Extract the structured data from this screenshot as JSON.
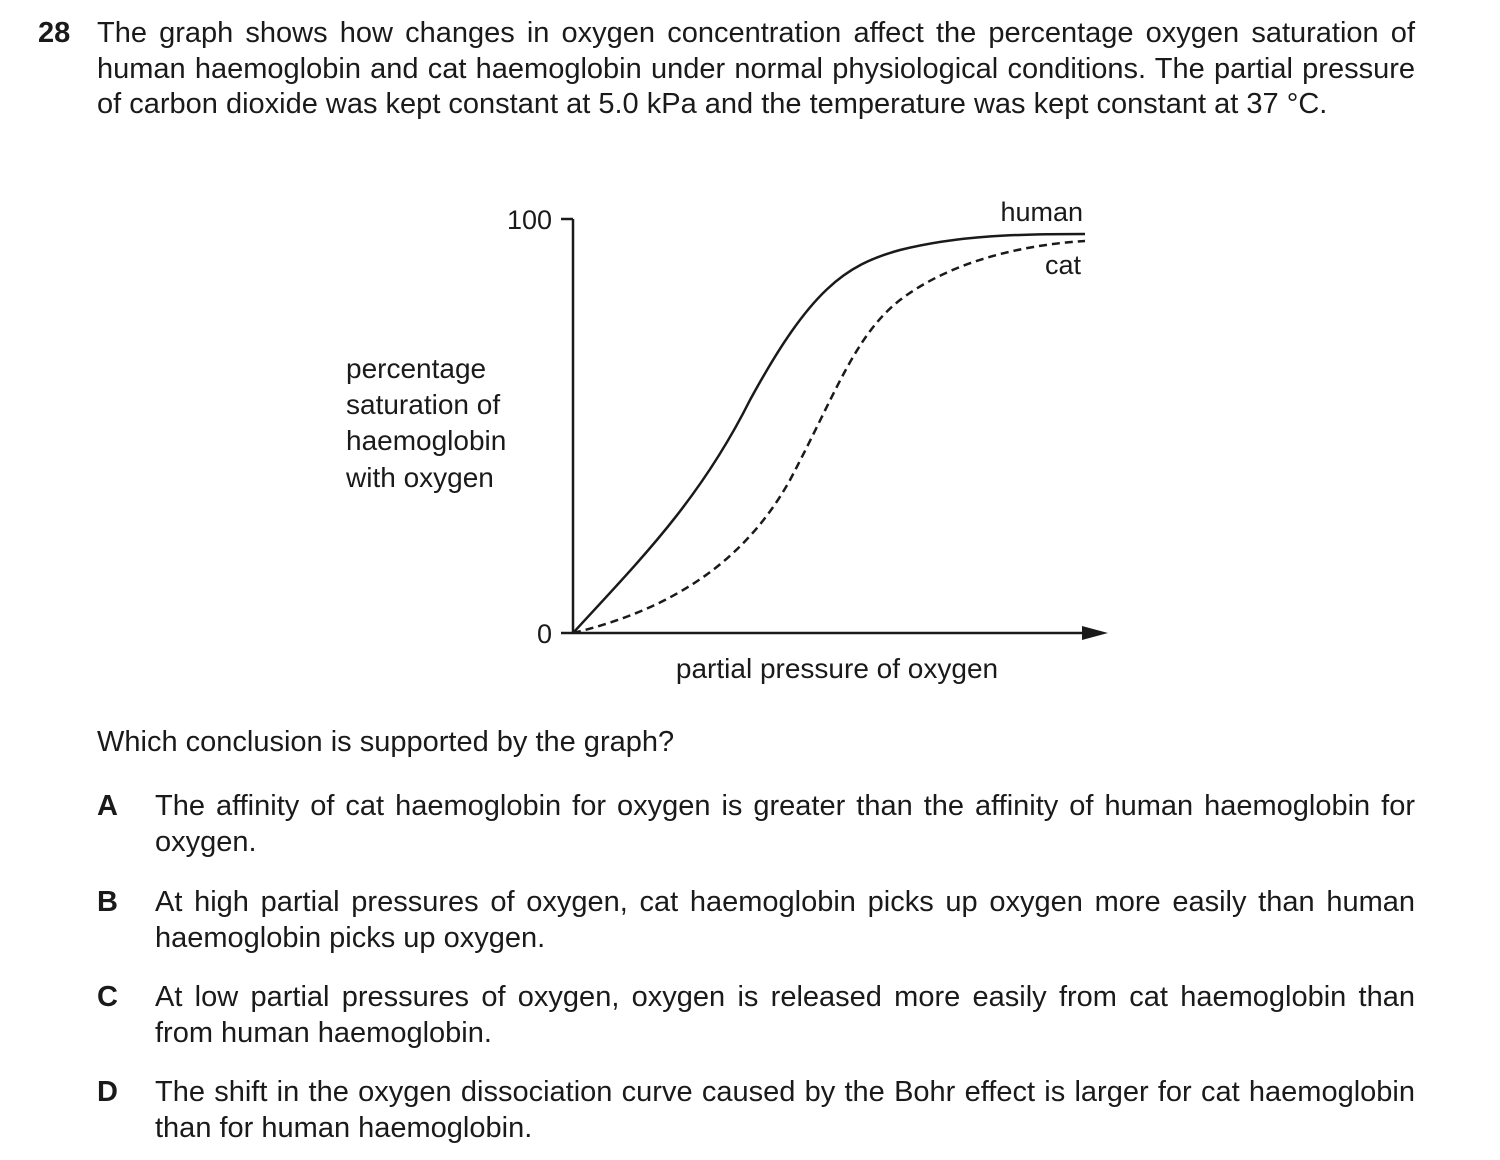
{
  "question": {
    "number": "28",
    "stem": "The graph shows how changes in oxygen concentration affect the percentage oxygen saturation of human haemoglobin and cat haemoglobin under normal physiological conditions. The partial pressure of carbon dioxide was kept constant at 5.0 kPa and the temperature was kept constant at 37 °C.",
    "prompt": "Which conclusion is supported by the graph?",
    "options": [
      {
        "letter": "A",
        "text": "The affinity of cat haemoglobin for oxygen is greater than the affinity of human haemoglobin for oxygen."
      },
      {
        "letter": "B",
        "text": "At high partial pressures of oxygen, cat haemoglobin picks up oxygen more easily than human haemoglobin picks up oxygen."
      },
      {
        "letter": "C",
        "text": "At low partial pressures of oxygen, oxygen is released more easily from cat haemoglobin than from human haemoglobin."
      },
      {
        "letter": "D",
        "text": "The shift in the oxygen dissociation curve caused by the Bohr effect is larger for cat haemoglobin than for human haemoglobin."
      }
    ]
  },
  "chart_data": {
    "type": "line",
    "xlabel": "partial pressure of oxygen",
    "ylabel_lines": [
      "percentage",
      "saturation of",
      "haemoglobin",
      "with oxygen"
    ],
    "y_ticks": [
      "100",
      "0"
    ],
    "ylim": [
      0,
      100
    ],
    "series": [
      {
        "name": "human",
        "style": "solid",
        "color": "#1a1a1a"
      },
      {
        "name": "cat",
        "style": "dashed",
        "color": "#1a1a1a"
      }
    ],
    "grid": false
  }
}
